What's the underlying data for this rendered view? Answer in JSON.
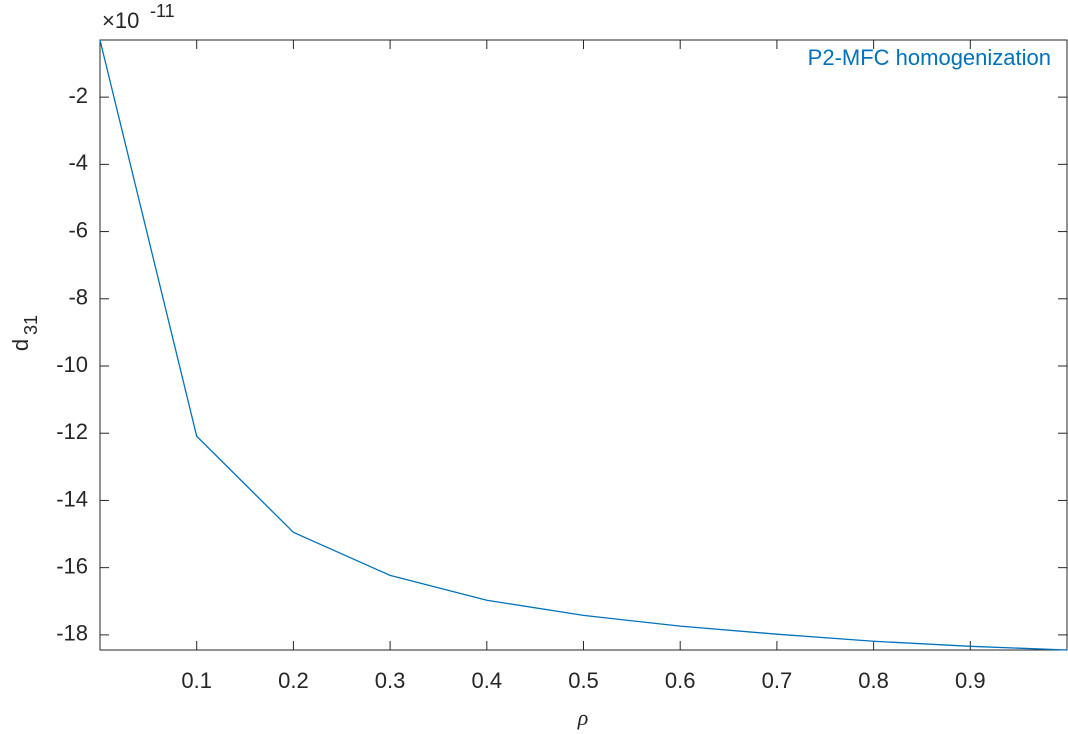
{
  "chart_data": {
    "type": "line",
    "x": [
      0,
      0.1,
      0.2,
      0.3,
      0.4,
      0.5,
      0.6,
      0.7,
      0.8,
      0.9,
      1.0
    ],
    "series": [
      {
        "name": "P2-MFC homogenization",
        "color": "#0072bd",
        "values": [
          -0.3,
          -12.09,
          -14.95,
          -16.23,
          -16.97,
          -17.42,
          -17.74,
          -17.98,
          -18.19,
          -18.34,
          -18.45
        ]
      }
    ],
    "xlabel": "ρ",
    "ylabel": "d",
    "ylabel_subscript": "31",
    "y_exponent_base": "×10",
    "y_exponent": "-11",
    "xlim": [
      0,
      1
    ],
    "ylim": [
      -18.45,
      -0.3
    ],
    "xticks": [
      0.1,
      0.2,
      0.3,
      0.4,
      0.5,
      0.6,
      0.7,
      0.8,
      0.9
    ],
    "yticks": [
      -18,
      -16,
      -14,
      -12,
      -10,
      -8,
      -6,
      -4,
      -2
    ],
    "grid": false,
    "legend": "top-right"
  }
}
